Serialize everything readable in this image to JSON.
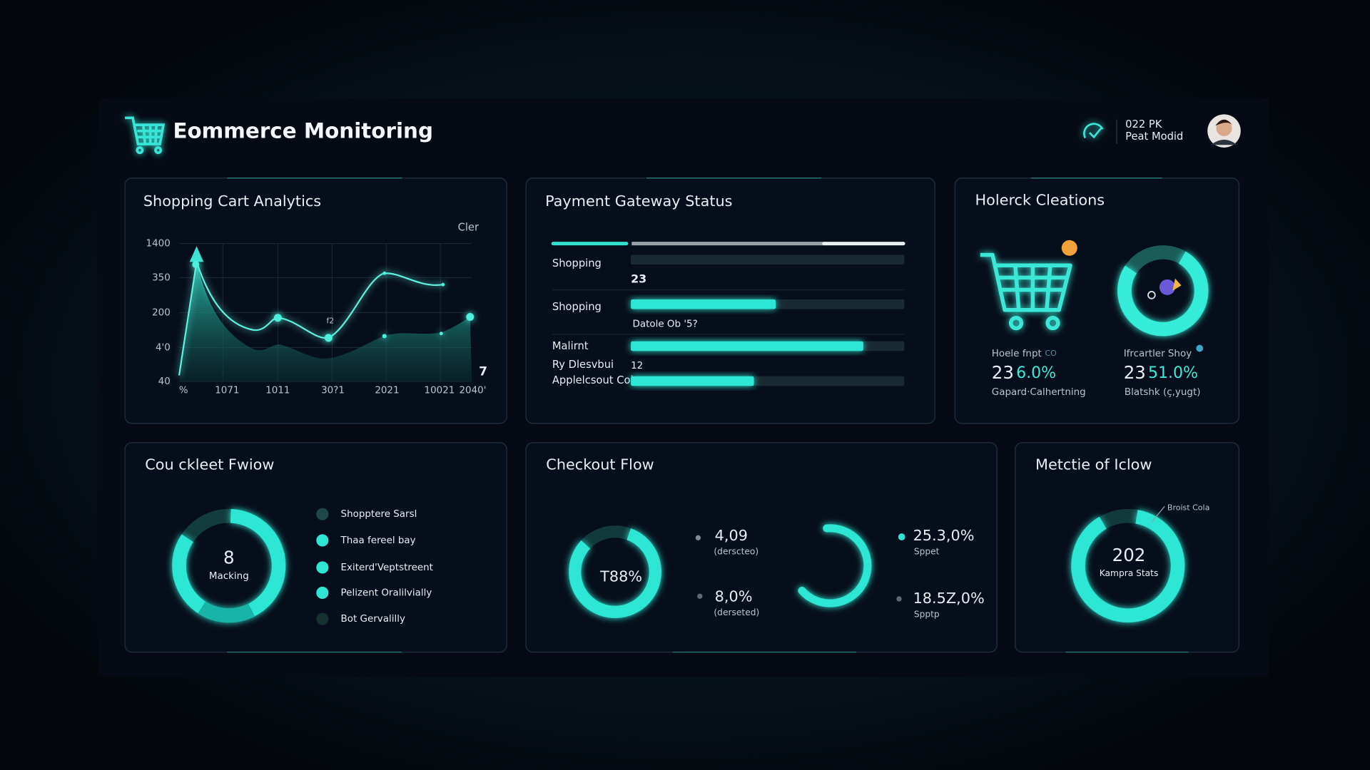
{
  "header": {
    "title": "Eommerce Monitoring",
    "status": "022 PK",
    "user": "Peat Modid"
  },
  "cart_analytics": {
    "title": "Shopping Cart Analytics",
    "legend": "Cler",
    "yticks": [
      "1400",
      "350",
      "200",
      "4'0",
      "40"
    ],
    "xticks": [
      "%",
      "1071",
      "1011",
      "30?1",
      "2021",
      "10021",
      "2040'"
    ],
    "annotations": [
      "f2",
      "7"
    ]
  },
  "payment_gateway": {
    "title": "Payment Gateway Status",
    "rows": [
      {
        "label": "Shopping",
        "progress": 0,
        "note": "23"
      },
      {
        "label": "Shopping",
        "progress": 53,
        "note": "Datole Ob '5?"
      },
      {
        "label": "Malirnt",
        "progress": 85
      },
      {
        "label": "Ry Dlesvbui",
        "note": "12"
      },
      {
        "label": "Applelcsout Col",
        "progress": 45
      }
    ]
  },
  "holerck": {
    "title": "Holerck Cleations",
    "items": [
      {
        "label": "Hoele fnpt",
        "tag": "CO",
        "count": "23",
        "rate": "6.0%",
        "caption": "Gapard·Calhertning"
      },
      {
        "label": "Ifrcartler Shoy",
        "count": "23",
        "rate": "51.0%",
        "caption": "Blatshk (ç,yugt)"
      }
    ]
  },
  "couckleet": {
    "title": "Cou ckleet Fwiow",
    "center_value": "8",
    "center_label": "Macking",
    "legend": [
      "Shopptere Sarsl",
      "Thaa fereel bay",
      "Exiterd'Veptstreent",
      "Pelizent Oralilvially",
      "Bot Gervalilly"
    ]
  },
  "checkout": {
    "title": "Checkout Flow",
    "center_value": "T88%",
    "stats": [
      {
        "value": "4,09",
        "label": "(derscteo)"
      },
      {
        "value": "8,0%",
        "label": "(derseted)"
      },
      {
        "value": "25.3,0%",
        "label": "Sppet"
      },
      {
        "value": "18.5Z,0%",
        "label": "Spptp"
      }
    ]
  },
  "metctie": {
    "title": "Metctie of Iclow",
    "center_value": "202",
    "center_label": "Kampra Stats",
    "callout": "Broist Cola"
  }
}
